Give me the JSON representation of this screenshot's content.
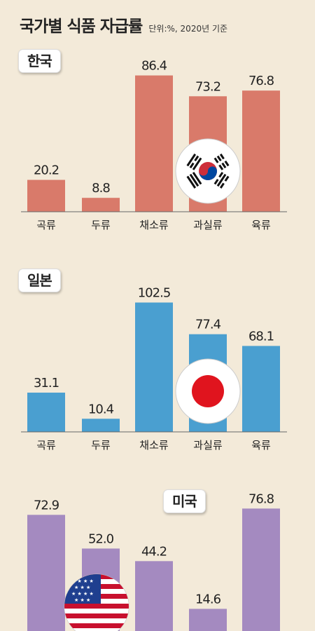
{
  "title": "국가별 식품 자급률",
  "subtitle": "단위:%, 2020년 기준",
  "colors": {
    "korea": "#d97a6a",
    "japan": "#4a9fd0",
    "usa": "#a48ac0"
  },
  "chart_data": [
    {
      "type": "bar",
      "country": "한국",
      "categories": [
        "곡류",
        "두류",
        "채소류",
        "과실류",
        "육류"
      ],
      "values": [
        20.2,
        8.8,
        86.4,
        73.2,
        76.8
      ],
      "value_labels": [
        "20.2",
        "8.8",
        "86.4",
        "73.2",
        "76.8"
      ]
    },
    {
      "type": "bar",
      "country": "일본",
      "categories": [
        "곡류",
        "두류",
        "채소류",
        "과실류",
        "육류"
      ],
      "values": [
        31.1,
        10.4,
        102.5,
        77.4,
        68.1
      ],
      "value_labels": [
        "31.1",
        "10.4",
        "102.5",
        "77.4",
        "68.1"
      ]
    },
    {
      "type": "bar",
      "country": "미국",
      "values": [
        72.9,
        52.0,
        44.2,
        14.6,
        76.8
      ],
      "value_labels": [
        "72.9",
        "52.0",
        "44.2",
        "14.6",
        "76.8"
      ]
    }
  ]
}
